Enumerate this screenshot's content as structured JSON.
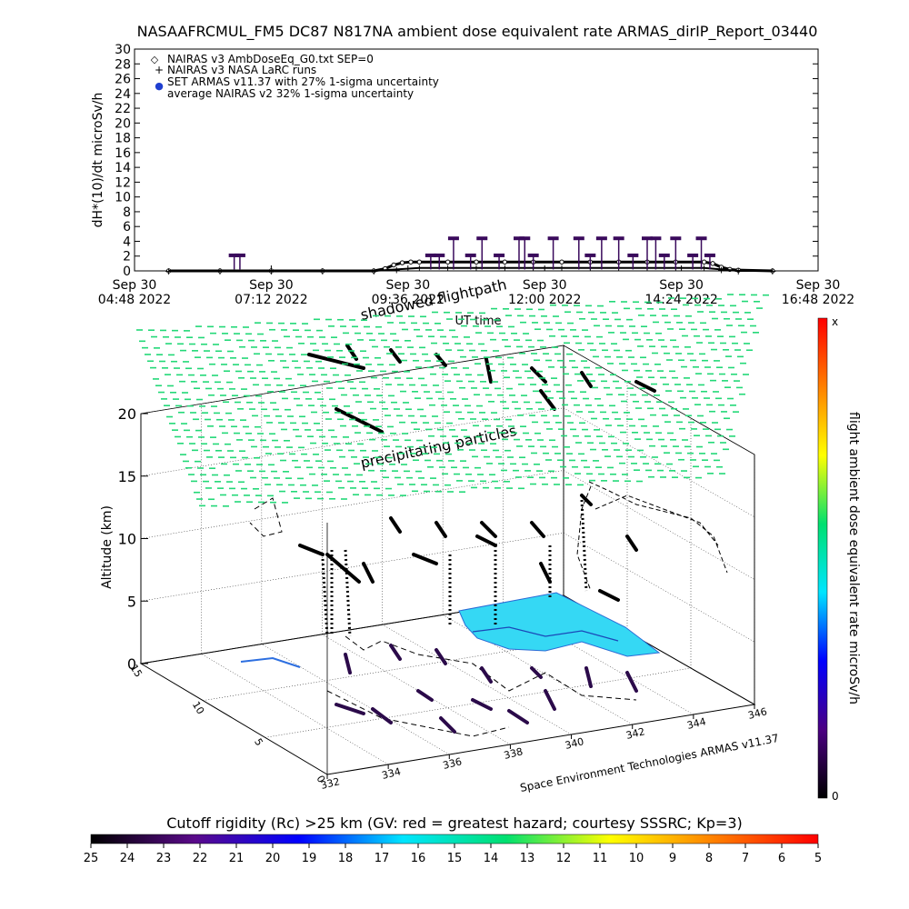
{
  "chart_data": [
    {
      "type": "line",
      "title": "NASAAFRCMUL_FM5 DC87 N817NA ambient dose equivalent rate ARMAS_dirIP_Report_03440",
      "xlabel": "UT time",
      "ylabel": "dH*(10)/dt microSv/h",
      "xlim": [
        "2022-09-30 04:48",
        "2022-09-30 16:48"
      ],
      "ylim": [
        0,
        30
      ],
      "y_ticks": [
        0,
        2,
        4,
        6,
        8,
        10,
        12,
        14,
        16,
        18,
        20,
        22,
        24,
        26,
        28,
        30
      ],
      "x_ticks": [
        {
          "date": "Sep 30",
          "time": "04:48 2022",
          "hours": 0
        },
        {
          "date": "Sep 30",
          "time": "07:12 2022",
          "hours": 2.4
        },
        {
          "date": "Sep 30",
          "time": "09:36 2022",
          "hours": 4.8
        },
        {
          "date": "Sep 30",
          "time": "12:00 2022",
          "hours": 7.2
        },
        {
          "date": "Sep 30",
          "time": "14:24 2022",
          "hours": 9.6
        },
        {
          "date": "Sep 30",
          "time": "16:48 2022",
          "hours": 12.0
        }
      ],
      "legend": [
        {
          "symbol": "◇",
          "label": "NAIRAS v3 AmbDoseEq_G0.txt SEP=0"
        },
        {
          "symbol": "+",
          "label": "NAIRAS v3 NASA LaRC runs"
        },
        {
          "symbol": "●",
          "label": "SET ARMAS v11.37 with 27% 1-sigma uncertainty",
          "color": "#1f3fd0"
        },
        {
          "symbol": "",
          "label": "average NAIRAS v2 32% 1-sigma uncertainty"
        }
      ],
      "legend_position": "top-left",
      "series": [
        {
          "name": "NAIRAS v3 AmbDoseEq_G0.txt SEP=0",
          "color": "#000000",
          "x": [
            0.6,
            1.5,
            2.4,
            3.3,
            4.2,
            4.4,
            4.55,
            4.7,
            4.85,
            5.0,
            5.5,
            6.0,
            6.5,
            7.0,
            7.5,
            8.0,
            8.5,
            9.0,
            9.5,
            10.0,
            10.15,
            10.3,
            10.45,
            10.6,
            11.2
          ],
          "y": [
            0.0,
            0.0,
            0.0,
            0.0,
            0.0,
            0.3,
            0.8,
            1.1,
            1.2,
            1.2,
            1.2,
            1.2,
            1.2,
            1.2,
            1.2,
            1.2,
            1.2,
            1.2,
            1.2,
            1.2,
            1.0,
            0.5,
            0.2,
            0.1,
            0.0
          ]
        },
        {
          "name": "NAIRAS v3 NASA LaRC runs",
          "color": "#000000",
          "x": [
            0.6,
            1.5,
            2.4,
            3.3,
            4.2,
            4.6,
            5.0,
            5.5,
            6.0,
            6.5,
            7.0,
            7.5,
            8.0,
            8.5,
            9.0,
            9.5,
            10.0,
            10.3,
            10.6,
            11.2
          ],
          "y": [
            0.0,
            0.0,
            0.0,
            0.0,
            0.0,
            0.2,
            0.4,
            0.4,
            0.4,
            0.4,
            0.4,
            0.4,
            0.4,
            0.4,
            0.4,
            0.4,
            0.4,
            0.2,
            0.0,
            0.0
          ]
        },
        {
          "name": "SET ARMAS v11.37 with 27% 1-sigma uncertainty",
          "color": "#3a0a5c",
          "x": [
            1.75,
            1.85,
            5.2,
            5.35,
            5.6,
            5.9,
            6.1,
            6.4,
            6.75,
            6.85,
            7.0,
            7.35,
            7.8,
            8.0,
            8.2,
            8.5,
            8.75,
            9.0,
            9.15,
            9.3,
            9.5,
            9.8,
            9.95,
            10.1
          ],
          "y": [
            2.1,
            2.1,
            2.1,
            2.1,
            4.4,
            2.1,
            4.4,
            2.1,
            4.4,
            4.4,
            2.1,
            4.4,
            4.4,
            2.1,
            4.4,
            4.4,
            2.1,
            4.4,
            4.4,
            2.1,
            4.4,
            2.1,
            4.4,
            2.1
          ]
        }
      ],
      "grid": false
    },
    {
      "type": "scatter",
      "chart_kind": "3d-flight-track",
      "zlabel": "Altitude (km)",
      "z_ticks": [
        0,
        5,
        10,
        15,
        20
      ],
      "zlim": [
        0,
        20
      ],
      "x_ticks": [
        "332",
        "334",
        "336",
        "338",
        "340",
        "342",
        "344",
        "346"
      ],
      "y_ticks": [
        "0",
        "5",
        "10",
        "15"
      ],
      "annotations": [
        "shadowed flightpath",
        "precipitating particles",
        "Space Environment Technologies ARMAS v11.37"
      ],
      "colorbar_right": {
        "label": "flight ambient dose equivalent rate microSv/h",
        "top": "x",
        "bottom": "0",
        "colors": [
          "#000000",
          "#4b0082",
          "#0000ff",
          "#00e5ff",
          "#00e070",
          "#ffff00",
          "#ff8000",
          "#ff0000"
        ]
      },
      "colorbar_bottom": {
        "title": "Cutoff rigidity (Rc) >25 km (GV: red = greatest hazard; courtesy SSSRC; Kp=3)",
        "ticks": [
          "25",
          "24",
          "23",
          "22",
          "21",
          "20",
          "19",
          "18",
          "17",
          "16",
          "15",
          "14",
          "13",
          "12",
          "11",
          "10",
          "9",
          "8",
          "7",
          "6",
          "5"
        ],
        "colors": [
          "#000000",
          "#5a0a8a",
          "#0000ff",
          "#00e5ff",
          "#00e070",
          "#ffff00",
          "#ff8000",
          "#ff0000"
        ]
      },
      "grid": true
    }
  ]
}
